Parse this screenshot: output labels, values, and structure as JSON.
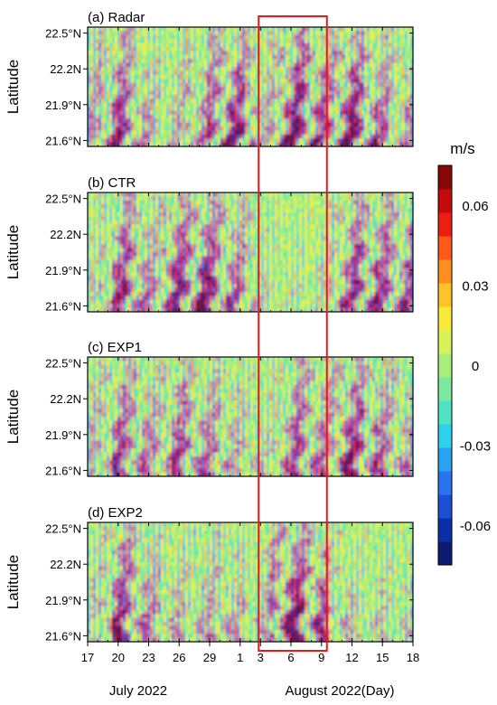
{
  "chart_data": {
    "type": "heatmap",
    "panels": [
      {
        "label": "(a) Radar",
        "pattern_strength": [
          0.6,
          0.7,
          0.9,
          0.8,
          0.6,
          0.5,
          0.4,
          0.5,
          0.6,
          0.6,
          0.8,
          0.9,
          0.9,
          0.8,
          0.5,
          0.6,
          0.9,
          1.0,
          0.9,
          0.8,
          0.8,
          1.0,
          0.9,
          0.8,
          0.7,
          0.6,
          0.6
        ]
      },
      {
        "label": "(b) CTR",
        "pattern_strength": [
          0.4,
          0.5,
          0.8,
          0.9,
          0.7,
          0.6,
          0.8,
          0.9,
          0.9,
          1.0,
          0.9,
          0.8,
          0.7,
          0.6,
          0.4,
          0.3,
          0.3,
          0.3,
          0.3,
          0.4,
          0.6,
          0.8,
          0.9,
          0.9,
          0.8,
          0.8,
          0.8
        ]
      },
      {
        "label": "(c) EXP1",
        "pattern_strength": [
          0.5,
          0.6,
          0.8,
          0.8,
          0.7,
          0.6,
          0.7,
          0.8,
          0.8,
          0.7,
          0.7,
          0.6,
          0.5,
          0.5,
          0.4,
          0.5,
          0.7,
          0.8,
          0.8,
          0.7,
          0.7,
          0.9,
          0.9,
          0.8,
          0.7,
          0.7,
          0.6
        ]
      },
      {
        "label": "(d) EXP2",
        "pattern_strength": [
          0.4,
          0.6,
          0.9,
          0.9,
          0.7,
          0.6,
          0.5,
          0.5,
          0.5,
          0.5,
          0.6,
          0.6,
          0.5,
          0.4,
          0.5,
          0.8,
          1.0,
          1.0,
          0.9,
          0.8,
          0.5,
          0.5,
          0.4,
          0.4,
          0.4,
          0.4,
          0.4
        ]
      }
    ],
    "ylabel": "Latitude",
    "y_ticks": [
      "22.5°N",
      "22.2N",
      "21.9°N",
      "21.6°N"
    ],
    "y_tick_values": [
      22.5,
      22.2,
      21.9,
      21.6
    ],
    "y_range": [
      21.55,
      22.55
    ],
    "x_ticks": [
      "17",
      "20",
      "23",
      "26",
      "29",
      "1",
      "3",
      "6",
      "9",
      "12",
      "15",
      "18"
    ],
    "x_tick_days": [
      0,
      3,
      6,
      9,
      12,
      15,
      17,
      20,
      23,
      26,
      29,
      32
    ],
    "x_range_days": [
      0,
      32
    ],
    "x_month_labels": [
      "July 2022",
      "August 2022(Day)"
    ],
    "highlight_box_days": [
      17,
      23
    ],
    "colorbar": {
      "unit": "m/s",
      "range": [
        -0.075,
        0.075
      ],
      "tick_labels": [
        "0.06",
        "0.03",
        "0",
        "-0.03",
        "-0.06"
      ],
      "tick_values": [
        0.06,
        0.03,
        0,
        -0.03,
        -0.06
      ],
      "colors": [
        "#0d1b73",
        "#0b2fa6",
        "#1b4fd6",
        "#2a74f0",
        "#2aa2f2",
        "#2ed0ec",
        "#4fe3c3",
        "#7be9a0",
        "#a8ee7a",
        "#d8f25a",
        "#f7ea3a",
        "#ffc22a",
        "#ff8f1f",
        "#ff5a17",
        "#ea1f12",
        "#c20c0c",
        "#8a0707"
      ]
    }
  }
}
